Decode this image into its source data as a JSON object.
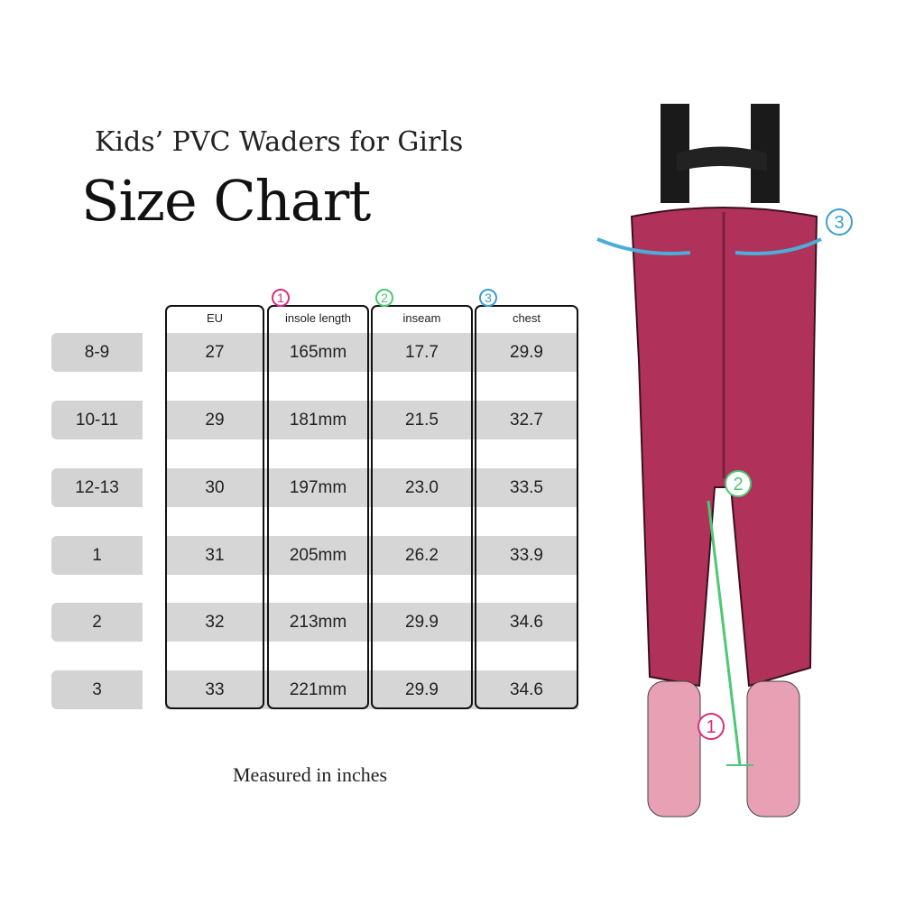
{
  "heading": {
    "subtitle": "Kids’ PVC Waders for Girls",
    "title": "Size Chart"
  },
  "table": {
    "columns": [
      {
        "label": "EU",
        "marker": ""
      },
      {
        "label": "insole length",
        "marker": "1",
        "marker_color": "#d6307a"
      },
      {
        "label": "inseam",
        "marker": "2",
        "marker_color": "#4cc873"
      },
      {
        "label": "chest",
        "marker": "3",
        "marker_color": "#3a9fc9"
      }
    ],
    "rows": [
      {
        "size": "8-9",
        "eu": "27",
        "insole": "165mm",
        "inseam": "17.7",
        "chest": "29.9"
      },
      {
        "size": "10-11",
        "eu": "29",
        "insole": "181mm",
        "inseam": "21.5",
        "chest": "32.7"
      },
      {
        "size": "12-13",
        "eu": "30",
        "insole": "197mm",
        "inseam": "23.0",
        "chest": "33.5"
      },
      {
        "size": "1",
        "eu": "31",
        "insole": "205mm",
        "inseam": "26.2",
        "chest": "33.9"
      },
      {
        "size": "2",
        "eu": "32",
        "insole": "213mm",
        "inseam": "29.9",
        "chest": "34.6"
      },
      {
        "size": "3",
        "eu": "33",
        "insole": "221mm",
        "inseam": "29.9",
        "chest": "34.6"
      }
    ]
  },
  "note": "Measured in inches",
  "illustration": {
    "markers": [
      "1",
      "2",
      "3"
    ],
    "colors": {
      "waders": "#b0325a",
      "straps": "#1a1a1a",
      "boots": "#e8a0b4"
    }
  }
}
